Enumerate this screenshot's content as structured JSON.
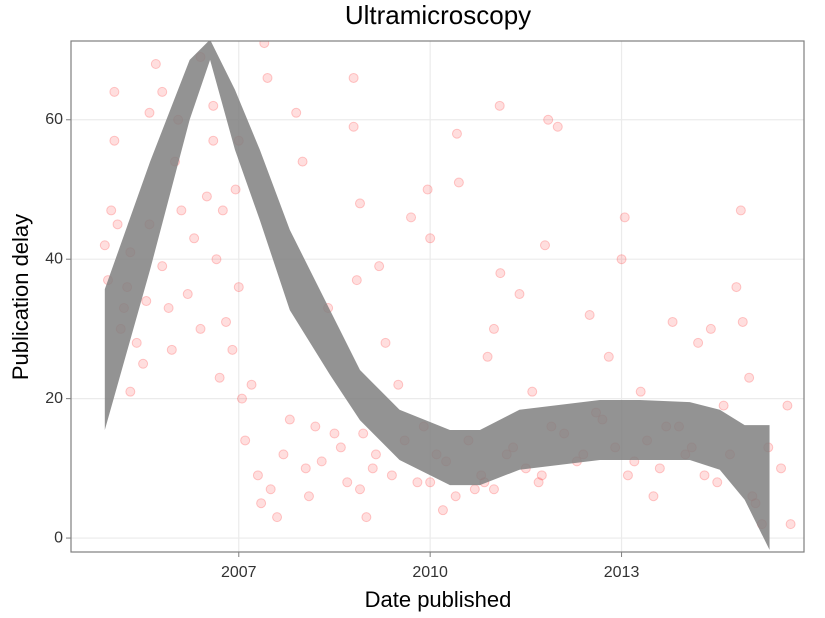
{
  "chart_data": {
    "type": "scatter",
    "title": "Ultramicroscopy",
    "x_label": "Date published",
    "y_label": "Publication delay",
    "xlim": [
      2004.37,
      2015.86
    ],
    "ylim": [
      -2,
      71.3
    ],
    "xticks": [
      2007,
      2010,
      2013
    ],
    "yticks": [
      0,
      20,
      40,
      60
    ],
    "grid": true,
    "series": [
      {
        "color": "#ff0000",
        "x": [
          2004.9,
          2004.95,
          2005.0,
          2005.05,
          2005.05,
          2005.1,
          2005.15,
          2005.2,
          2005.25,
          2005.3,
          2005.3,
          2005.4,
          2005.5,
          2005.55,
          2005.6,
          2005.6,
          2005.7,
          2005.8,
          2005.8,
          2005.9,
          2005.95,
          2006.0,
          2006.05,
          2006.1,
          2006.2,
          2006.3,
          2006.4,
          2006.4,
          2006.5,
          2006.6,
          2006.6,
          2006.65,
          2006.7,
          2006.75,
          2006.8,
          2006.9,
          2006.95,
          2007.0,
          2007.0,
          2007.05,
          2007.1,
          2007.2,
          2007.3,
          2007.35,
          2007.4,
          2007.45,
          2007.5,
          2007.6,
          2007.7,
          2007.9,
          2008.0,
          2008.1,
          2008.2,
          2008.4,
          2008.6,
          2008.7,
          2008.8,
          2008.8,
          2008.85,
          2008.9,
          2008.95,
          2009.0,
          2009.1,
          2009.2,
          2009.3,
          2009.5,
          2009.7,
          2009.9,
          2010.0,
          2009.96,
          2010.0,
          2010.1,
          2010.2,
          2010.4,
          2010.42,
          2010.45,
          2010.6,
          2010.8,
          2010.9,
          2011.0,
          2011.0,
          2011.1,
          2011.09,
          2011.2,
          2011.4,
          2011.6,
          2011.7,
          2011.8,
          2011.9,
          2011.85,
          2012.0,
          2012.3,
          2012.5,
          2012.6,
          2012.8,
          2012.9,
          2013.0,
          2013.05,
          2013.1,
          2013.3,
          2013.5,
          2013.7,
          2013.8,
          2014.0,
          2014.2,
          2014.4,
          2014.5,
          2014.6,
          2014.8,
          2014.87,
          2014.9,
          2015.0,
          2015.1,
          2015.2,
          2015.3,
          2015.5,
          2015.6,
          2015.65,
          2007.8,
          2008.05,
          2008.3,
          2008.5,
          2008.9,
          2009.15,
          2009.4,
          2009.6,
          2009.8,
          2010.25,
          2010.7,
          2010.85,
          2011.3,
          2011.5,
          2011.75,
          2012.1,
          2012.4,
          2012.7,
          2013.2,
          2013.4,
          2013.6,
          2013.9,
          2014.1,
          2014.3,
          2014.7,
          2015.05
        ],
        "values": [
          42,
          37,
          47,
          57,
          64,
          45,
          30,
          33,
          36,
          41,
          21,
          28,
          25,
          34,
          45,
          61,
          68,
          64,
          39,
          33,
          27,
          54,
          60,
          47,
          35,
          43,
          30,
          69,
          49,
          62,
          57,
          40,
          23,
          47,
          31,
          27,
          50,
          57,
          36,
          20,
          14,
          22,
          9,
          5,
          71,
          66,
          7,
          3,
          12,
          61,
          54,
          6,
          16,
          33,
          13,
          8,
          66,
          59,
          37,
          48,
          15,
          3,
          10,
          39,
          28,
          22,
          46,
          16,
          8,
          50,
          43,
          12,
          4,
          6,
          58,
          51,
          14,
          9,
          26,
          7,
          30,
          38,
          62,
          12,
          35,
          21,
          8,
          42,
          16,
          60,
          59,
          11,
          32,
          18,
          26,
          13,
          40,
          46,
          9,
          21,
          6,
          16,
          31,
          12,
          28,
          30,
          8,
          19,
          36,
          47,
          31,
          23,
          5,
          2,
          13,
          10,
          19,
          2,
          17,
          10,
          11,
          15,
          7,
          12,
          9,
          14,
          8,
          11,
          7,
          8,
          13,
          10,
          9,
          15,
          12,
          17,
          11,
          14,
          10,
          16,
          13,
          9,
          12,
          6
        ]
      }
    ],
    "band": {
      "color": "#808080",
      "x": [
        2004.9,
        2005.61,
        2006.23,
        2006.55,
        2006.94,
        2007.33,
        2007.8,
        2008.43,
        2008.9,
        2009.52,
        2010.31,
        2010.78,
        2011.4,
        2012.03,
        2012.66,
        2013.29,
        2014.07,
        2014.54,
        2014.93,
        2015.32
      ],
      "upper": [
        35.7,
        54,
        68.6,
        71.5,
        64.3,
        55.7,
        44.2,
        32.7,
        24.1,
        18.4,
        15.5,
        15.5,
        18.4,
        19.1,
        19.8,
        19.8,
        19.5,
        18.4,
        16.2,
        16.2
      ],
      "lower": [
        15.5,
        38.5,
        60,
        68.6,
        55.7,
        45.6,
        32.7,
        23.4,
        16.9,
        11.2,
        7.6,
        7.6,
        9.8,
        10.5,
        11.2,
        11.2,
        11.2,
        9.8,
        5.5,
        -1.7
      ]
    }
  }
}
